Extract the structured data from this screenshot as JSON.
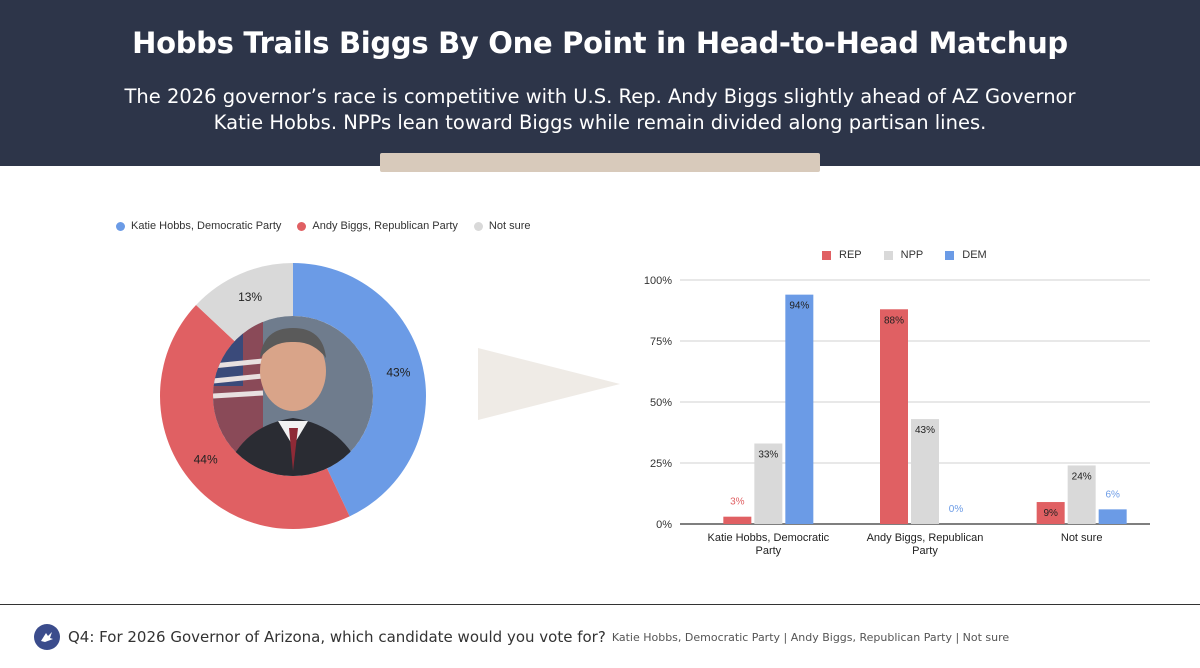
{
  "header": {
    "title": "Hobbs Trails Biggs By One Point in Head-to-Head Matchup",
    "subtitle": "The 2026 governor’s race is competitive with U.S. Rep. Andy Biggs slightly ahead of AZ Governor Katie Hobbs. NPPs lean toward Biggs while remain divided along partisan lines."
  },
  "colors": {
    "header_bg": "#2d3549",
    "accent_bar": "#d8cabb",
    "hobbs": "#6b9be6",
    "biggs": "#e06063",
    "not_sure": "#d9d9d9",
    "rep": "#e06063",
    "npp": "#d9d9d9",
    "dem": "#6b9be6",
    "arrow": "#efebe6"
  },
  "photo": {
    "description_icon": "person-portrait-icon"
  },
  "chart_data": [
    {
      "type": "pie",
      "title": "",
      "legend_position": "top",
      "labels": [
        "Katie Hobbs, Democratic Party",
        "Andy Biggs, Republican Party",
        "Not sure"
      ],
      "values": [
        43,
        44,
        13
      ],
      "data_labels": [
        "43%",
        "44%",
        "13%"
      ]
    },
    {
      "type": "bar",
      "title": "",
      "legend_position": "top",
      "categories": [
        "Katie Hobbs, Democratic Party",
        "Andy Biggs, Republican Party",
        "Not sure"
      ],
      "category_lines": [
        [
          "Katie Hobbs, Democratic",
          "Party"
        ],
        [
          "Andy Biggs, Republican",
          "Party"
        ],
        [
          "Not sure"
        ]
      ],
      "series": [
        {
          "name": "REP",
          "values": [
            3,
            88,
            9
          ]
        },
        {
          "name": "NPP",
          "values": [
            33,
            43,
            24
          ]
        },
        {
          "name": "DEM",
          "values": [
            94,
            0,
            6
          ]
        }
      ],
      "ylim": [
        0,
        100
      ],
      "yticks": [
        0,
        25,
        50,
        75,
        100
      ],
      "ytick_labels": [
        "0%",
        "25%",
        "50%",
        "75%",
        "100%"
      ],
      "grid": true,
      "xlabel": "",
      "ylabel": ""
    }
  ],
  "footer": {
    "question": "Q4: For 2026 Governor of Arizona, which candidate would you vote for?",
    "options": "Katie Hobbs, Democratic Party | Andy Biggs, Republican Party | Not sure",
    "logo_icon": "bird-logo-icon"
  }
}
